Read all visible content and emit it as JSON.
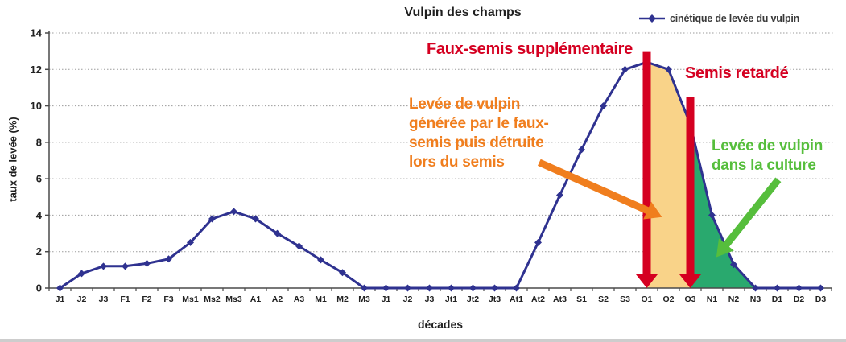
{
  "figure": {
    "title": "Vulpin des champs",
    "legend": {
      "label": "cinétique de levée du vulpin"
    }
  },
  "chart_data": {
    "type": "line",
    "title": "Vulpin des champs",
    "xlabel": "décades",
    "ylabel": "taux de levée (%)",
    "ylim": [
      0,
      14
    ],
    "yticks": [
      0,
      2,
      4,
      6,
      8,
      10,
      12,
      14
    ],
    "grid": "horizontal-dotted",
    "legend_position": "top-right",
    "categories": [
      "J1",
      "J2",
      "J3",
      "F1",
      "F2",
      "F3",
      "Ms1",
      "Ms2",
      "Ms3",
      "A1",
      "A2",
      "A3",
      "M1",
      "M2",
      "M3",
      "J1",
      "J2",
      "J3",
      "Jt1",
      "Jt2",
      "Jt3",
      "At1",
      "At2",
      "At3",
      "S1",
      "S2",
      "S3",
      "O1",
      "O2",
      "O3",
      "N1",
      "N2",
      "N3",
      "D1",
      "D2",
      "D3"
    ],
    "series": [
      {
        "name": "cinétique de levée du vulpin",
        "color": "#2f3290",
        "marker": "diamond",
        "values": [
          0,
          0.8,
          1.2,
          1.2,
          1.35,
          1.6,
          2.5,
          3.8,
          4.2,
          3.8,
          3.0,
          2.3,
          1.55,
          0.85,
          0,
          0,
          0,
          0,
          0,
          0,
          0,
          0,
          2.5,
          5.1,
          7.6,
          10.0,
          12.0,
          12.4,
          12.0,
          9.0,
          4.0,
          1.3,
          0,
          0,
          0,
          0
        ]
      }
    ],
    "fills": [
      {
        "name": "faux-semis-area",
        "label": "levée générée par le faux-semis",
        "from_index": 27,
        "to_index": 29,
        "color": "#f9d389"
      },
      {
        "name": "culture-area",
        "label": "levée de vulpin dans la culture",
        "from_index": 29,
        "to_index": 32,
        "color": "#29a96e"
      }
    ],
    "arrows": [
      {
        "name": "faux-semis-arrow",
        "kind": "vertical",
        "x_index": 27,
        "y_from": 13.0,
        "y_to": 0,
        "color": "#d50021"
      },
      {
        "name": "semis-retarde-arrow",
        "kind": "vertical",
        "x_index": 29,
        "y_from": 10.5,
        "y_to": 0,
        "color": "#d50021"
      },
      {
        "name": "faux-semis-effect-arrow",
        "kind": "diagonal",
        "from": [
          22.05,
          6.9
        ],
        "to": [
          27.7,
          3.9
        ],
        "color": "#f07e1e"
      },
      {
        "name": "culture-arrow",
        "kind": "diagonal",
        "from": [
          33.05,
          5.95
        ],
        "to": [
          30.2,
          1.7
        ],
        "color": "#56be3c"
      }
    ]
  },
  "annotations": {
    "faux_semis": {
      "text": "Faux-semis supplémentaire",
      "color": "#d50021"
    },
    "semis_retarde": {
      "text": "Semis retardé",
      "color": "#d50021"
    },
    "faux_semis_effect": {
      "lines": [
        "Levée de vulpin",
        "générée par le faux-",
        "semis puis détruite",
        "lors du semis"
      ],
      "color": "#f07e1e"
    },
    "culture": {
      "lines": [
        "Levée de vulpin",
        "dans la culture"
      ],
      "color": "#56be3c"
    }
  }
}
